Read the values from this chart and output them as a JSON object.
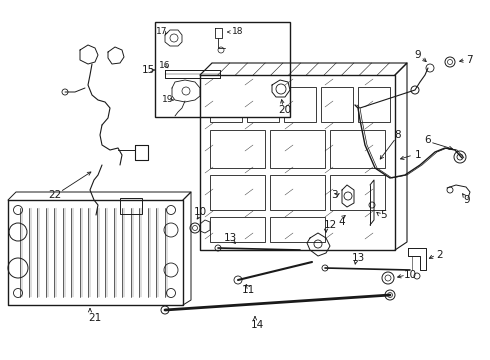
{
  "bg_color": "#ffffff",
  "gray": "#1a1a1a",
  "fig_w": 4.9,
  "fig_h": 3.6,
  "dpi": 100
}
